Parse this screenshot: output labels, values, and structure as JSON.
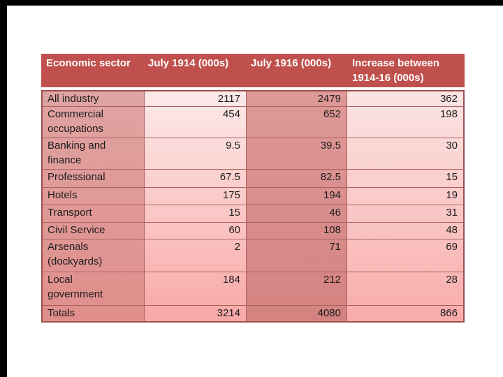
{
  "slide": {
    "background": "#FFFFFF",
    "letterbox_color": "#000000"
  },
  "colors": {
    "header_bg": "#C0504D",
    "header_text": "#FFFFFF",
    "grid_line": "#AC615F",
    "outer_border": "#9B514F",
    "body_text": "#1D1D1D",
    "col_sector_gradient": [
      "#DFA4A2",
      "#E08E8B"
    ],
    "col_1914_gradient": [
      "#FCEAE9",
      "#F8A8A6"
    ],
    "col_1916_gradient": [
      "#DE9A98",
      "#D48280"
    ],
    "col_increase_gradient": [
      "#FBE5E4",
      "#F8ACAA"
    ]
  },
  "chart_data": {
    "type": "table",
    "columns": [
      "Economic sector",
      "July 1914 (000s)",
      "July 1916 (000s)",
      "Increase between\n1914-16 (000s)"
    ],
    "rows": [
      [
        "All industry",
        "2117",
        "2479",
        "362"
      ],
      [
        "Commercial\noccupations",
        "454",
        "652",
        "198"
      ],
      [
        "Banking and\nfinance",
        "9.5",
        "39.5",
        "30"
      ],
      [
        "Professional",
        "67.5",
        "82.5",
        "15"
      ],
      [
        "Hotels",
        "175",
        "194",
        "19"
      ],
      [
        "Transport",
        "15",
        "46",
        "31"
      ],
      [
        "Civil Service",
        "60",
        "108",
        "48"
      ],
      [
        "Arsenals\n(dockyards)",
        "2",
        "71",
        "69"
      ],
      [
        "Local\ngovernment",
        "184",
        "212",
        "28"
      ],
      [
        "Totals",
        "3214",
        "4080",
        "866"
      ]
    ]
  }
}
